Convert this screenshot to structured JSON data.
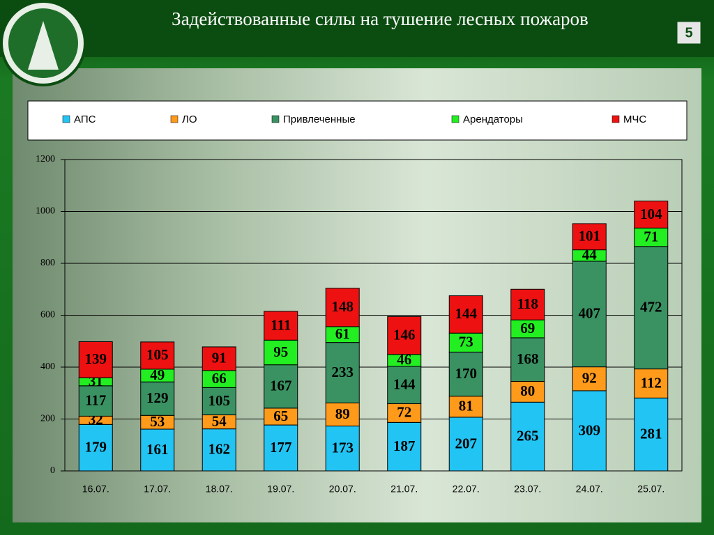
{
  "page_number": "5",
  "chart_data": {
    "type": "stacked_bar",
    "title": "Задействованные силы на тушение лесных пожаров",
    "categories": [
      "16.07.",
      "17.07.",
      "18.07.",
      "19.07.",
      "20.07.",
      "21.07.",
      "22.07.",
      "23.07.",
      "24.07.",
      "25.07."
    ],
    "series": [
      {
        "name": "АПС",
        "color": "#22c4f4",
        "values": [
          179,
          161,
          162,
          177,
          173,
          187,
          207,
          265,
          309,
          281
        ]
      },
      {
        "name": "ЛО",
        "color": "#ff9a1a",
        "values": [
          32,
          53,
          54,
          65,
          89,
          72,
          81,
          80,
          92,
          112
        ]
      },
      {
        "name": "Привлеченные",
        "color": "#3a9262",
        "values": [
          117,
          129,
          105,
          167,
          233,
          144,
          170,
          168,
          407,
          472
        ]
      },
      {
        "name": "Арендаторы",
        "color": "#22ee22",
        "values": [
          31,
          49,
          66,
          95,
          61,
          46,
          73,
          69,
          44,
          71
        ]
      },
      {
        "name": "МЧС",
        "color": "#ee1111",
        "values": [
          139,
          105,
          91,
          111,
          148,
          146,
          144,
          118,
          101,
          104
        ]
      }
    ],
    "ylim": [
      0,
      1200
    ],
    "yticks": [
      0,
      200,
      400,
      600,
      800,
      1000,
      1200
    ],
    "grid": true,
    "legend": "top"
  }
}
